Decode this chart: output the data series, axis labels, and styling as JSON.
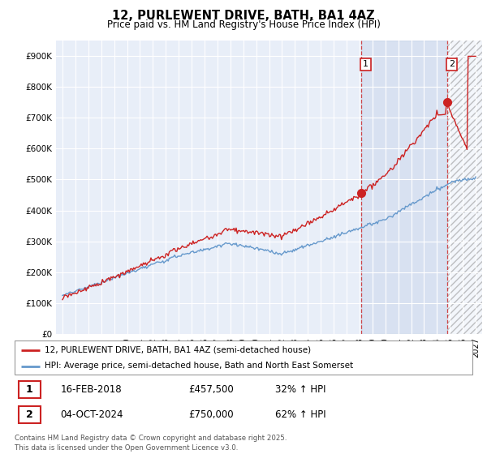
{
  "title": "12, PURLEWENT DRIVE, BATH, BA1 4AZ",
  "subtitle": "Price paid vs. HM Land Registry's House Price Index (HPI)",
  "ytick_values": [
    0,
    100000,
    200000,
    300000,
    400000,
    500000,
    600000,
    700000,
    800000,
    900000
  ],
  "ylim": [
    0,
    950000
  ],
  "xlim_start": 1994.5,
  "xlim_end": 2027.5,
  "hpi_color": "#6699cc",
  "price_color": "#cc2222",
  "marker1_year": 2018.12,
  "marker1_price": 457500,
  "marker2_year": 2024.77,
  "marker2_price": 750000,
  "legend_line1": "12, PURLEWENT DRIVE, BATH, BA1 4AZ (semi-detached house)",
  "legend_line2": "HPI: Average price, semi-detached house, Bath and North East Somerset",
  "footnote": "Contains HM Land Registry data © Crown copyright and database right 2025.\nThis data is licensed under the Open Government Licence v3.0.",
  "bg_color": "#e8eef8",
  "table_row1": [
    "1",
    "16-FEB-2018",
    "£457,500",
    "32% ↑ HPI"
  ],
  "table_row2": [
    "2",
    "04-OCT-2024",
    "£750,000",
    "62% ↑ HPI"
  ],
  "hatch_start": 2024.77,
  "shade_start": 2018.12
}
